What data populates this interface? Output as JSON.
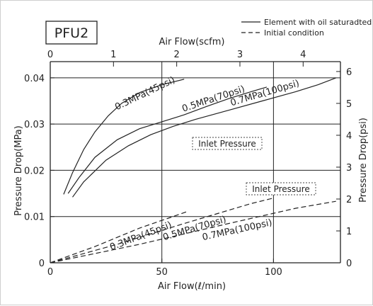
{
  "chart_data": {
    "type": "line",
    "model_label": "PFU2",
    "legend": {
      "placement": "top-right",
      "entries": [
        {
          "style": "solid",
          "label": "Element with oil saturadted"
        },
        {
          "style": "dashed",
          "label": "Initial condition"
        }
      ]
    },
    "xlabel": "Air Flow(ℓ/min)",
    "xlim": [
      0,
      130
    ],
    "x_ticks": [
      0,
      50,
      100
    ],
    "x_tick_labels": [
      "0",
      "50",
      "100"
    ],
    "x2label": "Air Flow(scfm)",
    "x2lim": [
      0,
      4.59
    ],
    "x2_ticks": [
      0,
      1,
      2,
      3,
      4
    ],
    "x2_tick_labels": [
      "0",
      "1",
      "2",
      "3",
      "4"
    ],
    "ylabel": "Pressure Drop(MPa)",
    "ylim": [
      0,
      0.0435
    ],
    "y_ticks": [
      0,
      0.01,
      0.02,
      0.03,
      0.04
    ],
    "y_tick_labels": [
      "0",
      "0.01",
      "0.02",
      "0.03",
      "0.04"
    ],
    "y2label": "Pressure Drop(psi)",
    "y2lim": [
      0,
      6.31
    ],
    "y2_ticks": [
      0,
      1,
      2,
      3,
      4,
      5,
      6
    ],
    "y2_tick_labels": [
      "0",
      "1",
      "2",
      "3",
      "4",
      "5",
      "6"
    ],
    "grid": {
      "horizontal_at": [
        0.01,
        0.02,
        0.03,
        0.04
      ],
      "vertical_at": [
        50,
        100
      ]
    },
    "annotations": [
      "Inlet Pressure",
      "Inlet Pressure"
    ],
    "series": [
      {
        "name": "0.3MPa(45psi)",
        "condition": "Element with oil saturadted",
        "style": "solid",
        "points": [
          [
            6,
            0.0148
          ],
          [
            10,
            0.0195
          ],
          [
            15,
            0.0245
          ],
          [
            20,
            0.0283
          ],
          [
            26,
            0.0318
          ],
          [
            32,
            0.0345
          ],
          [
            40,
            0.0368
          ],
          [
            50,
            0.0385
          ],
          [
            60,
            0.0397
          ]
        ]
      },
      {
        "name": "0.5MPa(70psi)",
        "condition": "Element with oil saturadted",
        "style": "solid",
        "points": [
          [
            8,
            0.015
          ],
          [
            13,
            0.0185
          ],
          [
            20,
            0.0228
          ],
          [
            30,
            0.0266
          ],
          [
            40,
            0.029
          ],
          [
            50,
            0.0305
          ],
          [
            60,
            0.032
          ],
          [
            70,
            0.0338
          ],
          [
            80,
            0.0355
          ],
          [
            90,
            0.037
          ],
          [
            97,
            0.038
          ]
        ]
      },
      {
        "name": "0.7MPa(100psi)",
        "condition": "Element with oil saturadted",
        "style": "solid",
        "points": [
          [
            10,
            0.0142
          ],
          [
            15,
            0.0175
          ],
          [
            25,
            0.0222
          ],
          [
            35,
            0.0253
          ],
          [
            45,
            0.0277
          ],
          [
            55,
            0.0295
          ],
          [
            65,
            0.031
          ],
          [
            80,
            0.033
          ],
          [
            95,
            0.035
          ],
          [
            110,
            0.037
          ],
          [
            120,
            0.0385
          ],
          [
            128,
            0.04
          ]
        ]
      },
      {
        "name": "0.3MPa(45psi)",
        "condition": "Initial condition",
        "style": "dashed",
        "points": [
          [
            0,
            0
          ],
          [
            20,
            0.0035
          ],
          [
            40,
            0.0075
          ],
          [
            55,
            0.01
          ],
          [
            62,
            0.0112
          ]
        ]
      },
      {
        "name": "0.5MPa(70psi)",
        "condition": "Initial condition",
        "style": "dashed",
        "points": [
          [
            0,
            0
          ],
          [
            30,
            0.004
          ],
          [
            60,
            0.0085
          ],
          [
            90,
            0.0128
          ],
          [
            100,
            0.014
          ]
        ]
      },
      {
        "name": "0.7MPa(100psi)",
        "condition": "Initial condition",
        "style": "dashed",
        "points": [
          [
            0,
            0
          ],
          [
            40,
            0.004
          ],
          [
            80,
            0.0085
          ],
          [
            110,
            0.0118
          ],
          [
            128,
            0.0133
          ]
        ]
      }
    ]
  }
}
